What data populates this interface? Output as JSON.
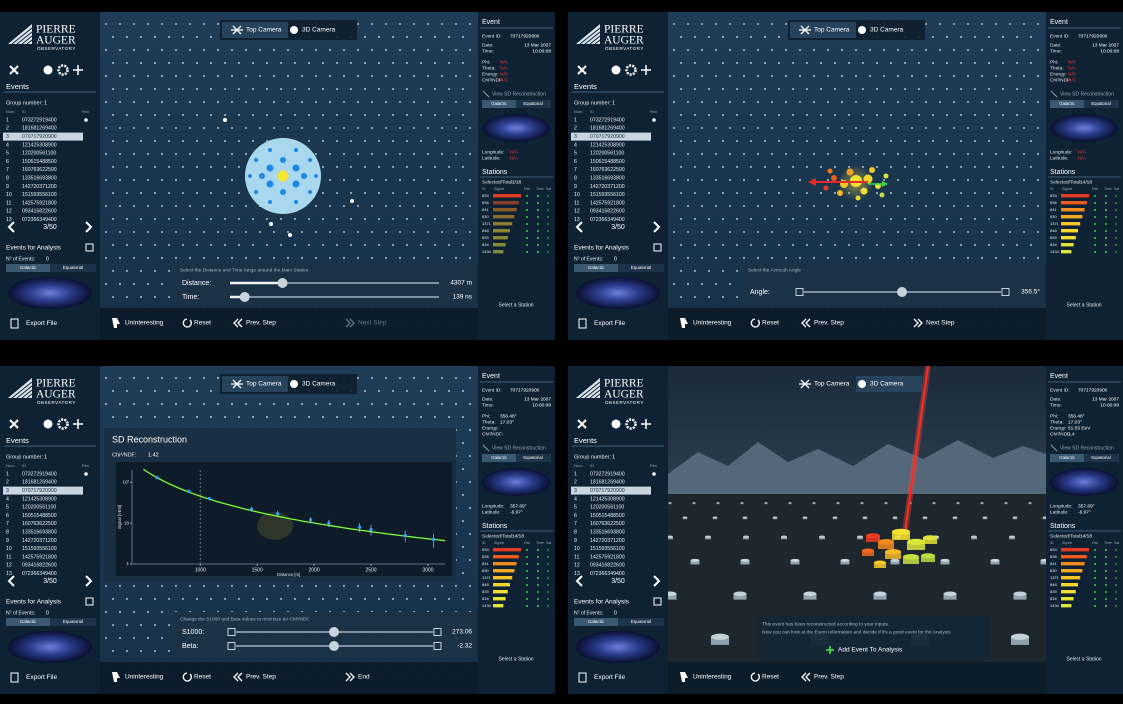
{
  "logo": {
    "name": [
      "PIERRE",
      "AUGER"
    ],
    "sub": "OBSERVATORY"
  },
  "tabs": [
    "Top Camera",
    "3D Camera"
  ],
  "events": {
    "title": "Events",
    "group_label": "Group number:",
    "group": "1",
    "columns": [
      "Num",
      "ID",
      "Rec."
    ],
    "rows": [
      [
        "1",
        "073272919400"
      ],
      [
        "2",
        "181681269400"
      ],
      [
        "3",
        "070717920900"
      ],
      [
        "4",
        "121425308900"
      ],
      [
        "5",
        "120200561100"
      ],
      [
        "6",
        "150515488500"
      ],
      [
        "7",
        "160763622500"
      ],
      [
        "8",
        "133516693800"
      ],
      [
        "9",
        "142720371200"
      ],
      [
        "10",
        "151593556100"
      ],
      [
        "11",
        "142575921800"
      ],
      [
        "12",
        "093416822600"
      ],
      [
        "13",
        "072366349400"
      ]
    ],
    "page": "3/50"
  },
  "analysis": {
    "title": "Events for Analysis",
    "count_label": "N° of Events:",
    "count": "0",
    "frames": [
      "Galactic",
      "Equatorial"
    ],
    "export": "Export File"
  },
  "event": {
    "title": "Event",
    "labels": [
      "Event ID:",
      "Date:",
      "Time:",
      "Phi:",
      "Theta:",
      "Energy:",
      "Chi²/NDF:"
    ],
    "values": [
      "70717920900",
      "13 Mar 2007",
      "10:00:08"
    ],
    "view": "View SD Reconstruction",
    "coord_labels": [
      "Longitude:",
      "Latitude:"
    ]
  },
  "stations": {
    "title": "Stations",
    "selected_label": "Selected/Total:",
    "columns": [
      "ID",
      "Signal",
      "Dist",
      "Time",
      "Sat"
    ],
    "ids": [
      "833",
      "836",
      "841",
      "830",
      "1371",
      "848",
      "839",
      "834",
      "1434"
    ],
    "hint": "Select a Station"
  },
  "buttons": {
    "uninteresting": "Uninteresting",
    "reset": "Reset",
    "prev": "Prev. Step"
  },
  "panels": [
    {
      "reco": [
        "N/A",
        "N/A",
        "N/A",
        "N/A"
      ],
      "coords": [
        "N/A",
        "N/A"
      ],
      "selected": "1/18",
      "prompt": "Select the Distance and Time range around the Main Station",
      "sliders": [
        [
          "Distance:",
          "4307 m"
        ],
        [
          "Time:",
          "139 ns"
        ]
      ],
      "next": "Next Step"
    },
    {
      "reco": [
        "N/A",
        "N/A",
        "N/A",
        "N/A"
      ],
      "coords": [
        "N/A",
        "N/A"
      ],
      "selected": "14/18",
      "prompt": "Select the Azimuth Angle",
      "sliders": [
        [
          "Angle:",
          "356.5°"
        ]
      ],
      "next": "Next Step"
    },
    {
      "reco": [
        "356.48°",
        "17.03°"
      ],
      "coords": [
        "357.69°",
        "-6.97°"
      ],
      "selected": "14/18",
      "dialog": "SD Reconstruction",
      "chi_label": "Chi²/NDF:",
      "chi": "1.42",
      "prompt": "Change the S1000 and Beta values to minimize de Chi²/NDF",
      "sliders": [
        [
          "S1000:",
          "273.06"
        ],
        [
          "Beta:",
          "-2.32"
        ]
      ],
      "next": "End"
    },
    {
      "reco": [
        "356.48°",
        "17.03°",
        "51.55 EeV",
        "1.4"
      ],
      "coords": [
        "357.69°",
        "-6.97°"
      ],
      "selected": "14/18",
      "message": [
        "This event has been reconstructed according to your inputs.",
        "Now you can look at the Event Information and decide if it's a good event for the Analysis"
      ],
      "add": "Add Event To Analysis"
    }
  ],
  "chart_data": {
    "type": "scatter",
    "x_label": "Distance [m]",
    "y_label": "Signal [VEM]",
    "x": [
      620,
      900,
      1080,
      1450,
      1680,
      1970,
      2130,
      2400,
      2500,
      2800,
      3050
    ],
    "values": [
      130,
      60,
      40,
      22,
      17,
      12,
      10,
      8,
      7,
      5,
      4
    ],
    "errors": [
      10,
      6,
      4,
      3,
      3,
      2,
      2,
      2,
      2,
      1.5,
      1.5
    ],
    "xlim": [
      400,
      3150
    ],
    "ylim": [
      1,
      200
    ],
    "log_y": true,
    "xticks": [
      1000,
      1500,
      2000,
      2500,
      3000
    ],
    "yticks": [
      {
        "value": 100,
        "label": "10²"
      },
      {
        "value": 10,
        "label": "10"
      },
      {
        "value": 1,
        "label": "1"
      }
    ],
    "color": "#3aa0ff",
    "fit_color": "#7cfc3a"
  }
}
